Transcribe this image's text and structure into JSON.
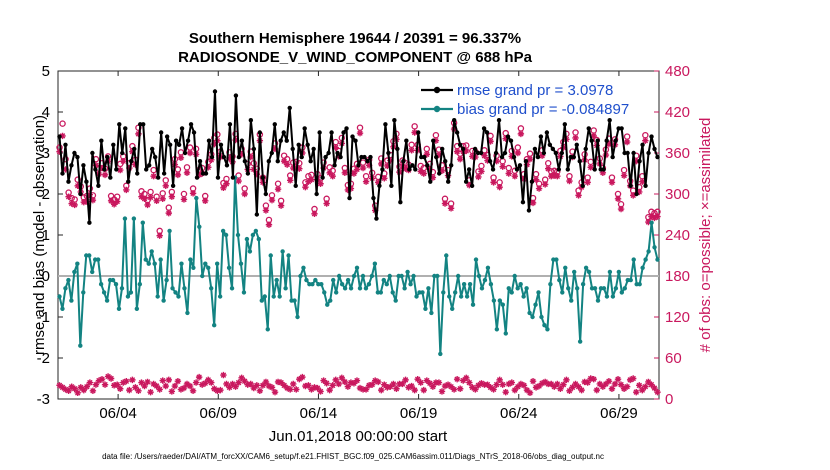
{
  "chart_data": {
    "type": "line",
    "title": "Southern Hemisphere 19644 / 20391 = 96.337%",
    "subtitle": "RADIOSONDE_V_WIND_COMPONENT @ 688 hPa",
    "xlabel": "Jun.01,2018 00:00:00 start",
    "ylabel_left": "rmse and bias (model - observation)",
    "ylabel_right": "# of obs: o=possible; ×=assimilated",
    "footnote": "data file: /Users/raeder/DAI/ATM_forcXX/CAM6_setup/f.e21.FHIST_BGC.f09_025.CAM6assim.011/Diags_NTrS_2018-06/obs_diag_output.nc",
    "x_start_day": 1,
    "x_end_day": 31,
    "xticks": [
      4,
      9,
      14,
      19,
      24,
      29
    ],
    "xtick_labels": [
      "06/04",
      "06/09",
      "06/14",
      "06/19",
      "06/24",
      "06/29"
    ],
    "ylim_left": [
      -3,
      5
    ],
    "yticks_left": [
      "-3",
      "-2",
      "-1",
      "0",
      "1",
      "2",
      "3",
      "4",
      "5"
    ],
    "ylim_right": [
      0,
      480
    ],
    "yticks_right": [
      "0",
      "60",
      "120",
      "180",
      "240",
      "300",
      "360",
      "420",
      "480"
    ],
    "legend": [
      "rmse grand pr = 3.0978",
      "bias grand pr = -0.084897"
    ],
    "colors": {
      "rmse": "#000000",
      "bias": "#138382",
      "obs": "#c9185e",
      "legend_text": "#1f4fcc",
      "zero_line": "#b0b0b0"
    },
    "series": [
      {
        "name": "rmse",
        "axis": "left",
        "values": [
          3.4,
          2.5,
          3.2,
          2.3,
          2.7,
          3.0,
          2.9,
          2.0,
          2.7,
          2.3,
          1.3,
          3.0,
          2.6,
          2.2,
          3.3,
          2.6,
          2.9,
          2.4,
          3.2,
          2.6,
          3.7,
          3.0,
          3.6,
          2.3,
          2.8,
          3.1,
          2.5,
          3.7,
          3.7,
          2.6,
          2.7,
          3.1,
          2.9,
          2.4,
          3.5,
          2.5,
          3.4,
          3.2,
          2.2,
          3.3,
          3.2,
          3.6,
          3.0,
          3.3,
          3.7,
          3.5,
          2.4,
          2.8,
          2.5,
          2.5,
          3.3,
          2.9,
          4.5,
          2.4,
          3.2,
          2.9,
          2.7,
          3.7,
          2.4,
          4.4,
          2.9,
          3.3,
          2.8,
          2.5,
          3.8,
          3.1,
          1.5,
          3.5,
          2.4,
          2.0,
          2.8,
          3.0,
          3.7,
          2.8,
          3.3,
          3.5,
          3.3,
          4.1,
          3.1,
          2.2,
          3.2,
          2.9,
          3.6,
          3.2,
          2.8,
          3.1,
          2.0,
          3.5,
          2.4,
          2.9,
          3.0,
          3.5,
          2.7,
          3.0,
          2.9,
          3.5,
          3.6,
          1.9,
          3.4,
          3.3,
          2.7,
          2.9,
          2.9,
          2.8,
          2.9,
          1.9,
          1.4,
          2.2,
          2.6,
          3.7,
          3.0,
          2.2,
          3.8,
          3.1,
          1.8,
          2.8,
          3.3,
          2.6,
          2.7,
          2.6,
          3.5,
          2.9,
          2.9,
          2.7,
          2.3,
          3.3,
          2.9,
          2.5,
          3.1,
          2.8,
          2.3,
          2.7,
          3.8,
          3.5,
          3.2,
          3.1,
          2.3,
          2.6,
          2.2,
          3.1,
          3.0,
          3.0,
          3.6,
          3.5,
          2.8,
          2.6,
          3.0,
          3.8,
          2.9,
          3.0,
          3.4,
          3.3,
          2.9,
          2.6,
          2.7,
          1.8,
          2.8,
          1.6,
          2.3,
          3.1,
          2.9,
          3.4,
          3.0,
          3.5,
          3.2,
          3.1,
          3.0,
          2.6,
          3.0,
          3.7,
          2.6,
          2.9,
          2.9,
          3.2,
          2.8,
          2.2,
          3.1,
          3.6,
          3.3,
          2.6,
          3.3,
          2.6,
          2.6,
          3.3,
          3.8,
          2.9,
          3.3,
          3.6,
          3.6,
          3.0,
          3.0,
          2.2,
          3.0,
          2.0,
          2.8,
          3.2,
          2.2,
          3.0,
          3.4,
          3.1,
          2.9
        ]
      },
      {
        "name": "bias",
        "axis": "left",
        "values": [
          -0.5,
          -0.8,
          -0.3,
          -0.1,
          -0.6,
          0.1,
          0.3,
          -1.7,
          -0.4,
          0.5,
          0.5,
          0.1,
          0.4,
          0.4,
          -0.2,
          -0.4,
          -0.6,
          -0.1,
          -0.1,
          -0.2,
          -0.8,
          -0.3,
          1.4,
          -0.5,
          -0.4,
          1.4,
          -0.8,
          -0.2,
          1.3,
          0.4,
          0.3,
          0.6,
          0.3,
          -0.5,
          0.4,
          -0.6,
          -0.1,
          1.1,
          -0.3,
          -0.4,
          -0.5,
          0.3,
          -0.3,
          -0.9,
          0.4,
          0.2,
          1.9,
          1.2,
          0.0,
          0.3,
          0.2,
          -0.3,
          -1.2,
          0.3,
          -0.5,
          1.1,
          1.0,
          0.2,
          -0.3,
          2.4,
          1.0,
          0.3,
          -0.4,
          0.9,
          0.6,
          1.0,
          1.1,
          0.9,
          -0.6,
          -0.5,
          -1.3,
          0.5,
          -0.5,
          -0.1,
          -0.5,
          0.6,
          -0.3,
          0.5,
          -0.6,
          -0.6,
          -1.0,
          0.0,
          0.2,
          -0.1,
          -0.2,
          -0.2,
          -0.1,
          -0.2,
          -0.2,
          -0.4,
          -0.7,
          -0.6,
          -0.1,
          -0.4,
          0.0,
          -0.2,
          -0.3,
          -0.1,
          -0.3,
          0.0,
          0.2,
          -0.3,
          0.0,
          -0.3,
          -0.2,
          0.0,
          0.3,
          -0.4,
          -0.4,
          -0.1,
          -0.2,
          0.0,
          -0.4,
          -0.6,
          0.0,
          0.0,
          -0.3,
          0.1,
          -0.2,
          0.0,
          -0.5,
          -0.4,
          -0.4,
          -0.8,
          -0.3,
          -0.9,
          0.0,
          0.0,
          -1.9,
          -0.4,
          0.5,
          -0.5,
          -0.8,
          -0.4,
          0.0,
          -0.5,
          -0.2,
          -0.5,
          -0.2,
          -0.7,
          0.4,
          0.0,
          -0.3,
          -0.1,
          0.2,
          -0.2,
          -0.6,
          -1.3,
          -0.6,
          -0.7,
          -1.4,
          -0.3,
          -0.4,
          0.0,
          -0.3,
          -0.2,
          -0.5,
          -0.3,
          -0.9,
          -1.0,
          -0.7,
          -0.4,
          -1.0,
          -1.2,
          -1.3,
          -0.2,
          0.4,
          0.4,
          -0.1,
          -0.4,
          0.2,
          -0.3,
          -0.6,
          0.1,
          -0.3,
          -1.6,
          -0.2,
          0.2,
          0.1,
          -0.3,
          -0.3,
          -0.6,
          -0.3,
          -0.3,
          -0.5,
          0.1,
          -0.5,
          -0.3,
          0.1,
          -0.4,
          -0.3,
          -0.1,
          -0.1,
          0.4,
          -0.2,
          -0.2,
          0.2,
          0.4,
          0.6,
          1.3,
          0.7,
          0.4
        ]
      },
      {
        "name": "obs possible (o)",
        "axis": "right",
        "values": [
          368,
          403,
          351,
          302,
          294,
          292,
          321,
          311,
          295,
          297,
          308,
          298,
          351,
          337,
          345,
          337,
          355,
          297,
          292,
          296,
          344,
          355,
          312,
          345,
          370,
          350,
          397,
          304,
          300,
          291,
          303,
          335,
          296,
          246,
          301,
          320,
          280,
          303,
          351,
          336,
          361,
          300,
          339,
          368,
          308,
          366,
          335,
          338,
          297,
          347,
          358,
          382,
          387,
          362,
          316,
          322,
          361,
          355,
          388,
          327,
          366,
          308,
          344,
          362,
          345,
          337,
          387,
          324,
          283,
          262,
          298,
          374,
          315,
          290,
          356,
          351,
          327,
          346,
          347,
          345,
          368,
          317,
          326,
          328,
          278,
          329,
          323,
          346,
          293,
          339,
          334,
          376,
          363,
          382,
          338,
          313,
          315,
          337,
          344,
          397,
          346,
          326,
          350,
          331,
          283,
          325,
          352,
          330,
          349,
          357,
          377,
          388,
          340,
          349,
          345,
          343,
          372,
          399,
          372,
          341,
          338,
          366,
          344,
          332,
          386,
          365,
          342,
          293,
          335,
          286,
          404,
          370,
          359,
          370,
          371,
          320,
          363,
          362,
          333,
          341,
          364,
          357,
          385,
          324,
          356,
          317,
          348,
          389,
          338,
          363,
          334,
          368,
          396,
          329,
          351,
          359,
          294,
          329,
          315,
          364,
          321,
          345,
          333,
          334,
          333,
          363,
          376,
          388,
          326,
          362,
          390,
          305,
          317,
          358,
          324,
          347,
          393,
          379,
          352,
          338,
          365,
          381,
          324,
          380,
          300,
          285,
          335,
          384,
          319,
          305,
          356,
          310,
          326,
          386,
          266,
          274,
          272,
          274
        ]
      },
      {
        "name": "obs assimilated (x)",
        "axis": "right",
        "values": [
          362,
          385,
          336,
          296,
          286,
          284,
          312,
          303,
          288,
          289,
          299,
          291,
          342,
          329,
          338,
          328,
          348,
          290,
          285,
          289,
          335,
          348,
          306,
          338,
          362,
          343,
          388,
          296,
          293,
          284,
          295,
          326,
          290,
          239,
          293,
          312,
          272,
          296,
          343,
          328,
          353,
          292,
          331,
          360,
          301,
          358,
          328,
          330,
          290,
          339,
          350,
          373,
          378,
          354,
          309,
          315,
          352,
          347,
          379,
          319,
          358,
          300,
          336,
          354,
          336,
          329,
          378,
          317,
          276,
          255,
          291,
          366,
          307,
          283,
          348,
          343,
          320,
          338,
          339,
          337,
          360,
          310,
          318,
          321,
          271,
          321,
          315,
          338,
          286,
          331,
          326,
          368,
          355,
          374,
          331,
          306,
          308,
          330,
          336,
          389,
          338,
          318,
          342,
          323,
          276,
          317,
          344,
          323,
          341,
          349,
          369,
          380,
          332,
          341,
          337,
          335,
          364,
          390,
          364,
          333,
          330,
          358,
          336,
          324,
          378,
          357,
          334,
          286,
          327,
          279,
          395,
          362,
          351,
          362,
          363,
          313,
          355,
          354,
          325,
          333,
          356,
          349,
          377,
          317,
          348,
          310,
          340,
          381,
          330,
          355,
          326,
          360,
          388,
          322,
          343,
          351,
          287,
          321,
          308,
          356,
          314,
          337,
          326,
          327,
          326,
          355,
          368,
          380,
          319,
          354,
          382,
          298,
          310,
          350,
          317,
          339,
          385,
          371,
          344,
          331,
          357,
          373,
          317,
          372,
          293,
          278,
          327,
          376,
          312,
          298,
          348,
          303,
          318,
          378,
          259,
          267,
          265,
          267
        ]
      },
      {
        "name": "obs possible low (o)",
        "axis": "right",
        "values": [
          20,
          17,
          14,
          12,
          18,
          15,
          9,
          17,
          13,
          18,
          24,
          12,
          21,
          27,
          29,
          21,
          33,
          30,
          20,
          21,
          15,
          24,
          26,
          13,
          28,
          17,
          12,
          24,
          19,
          25,
          10,
          22,
          19,
          14,
          27,
          19,
          28,
          11,
          19,
          26,
          14,
          16,
          22,
          19,
          12,
          24,
          32,
          21,
          23,
          28,
          24,
          15,
          12,
          13,
          35,
          22,
          17,
          22,
          18,
          24,
          31,
          26,
          21,
          22,
          16,
          20,
          12,
          20,
          25,
          19,
          17,
          10,
          25,
          24,
          20,
          16,
          14,
          22,
          14,
          29,
          32,
          19,
          20,
          14,
          17,
          16,
          11,
          27,
          23,
          13,
          20,
          28,
          22,
          31,
          25,
          18,
          24,
          23,
          27,
          16,
          14,
          14,
          20,
          21,
          27,
          25,
          13,
          21,
          17,
          18,
          22,
          15,
          22,
          22,
          28,
          17,
          19,
          13,
          29,
          24,
          13,
          27,
          23,
          18,
          24,
          24,
          11,
          19,
          21,
          18,
          14,
          29,
          15,
          27,
          31,
          24,
          17,
          14,
          20,
          23,
          21,
          21,
          17,
          14,
          21,
          28,
          21,
          10,
          22,
          24,
          13,
          18,
          22,
          20,
          13,
          9,
          26,
          17,
          19,
          23,
          25,
          22,
          22,
          18,
          22,
          15,
          21,
          28,
          12,
          17,
          22,
          18,
          13,
          25,
          24,
          30,
          29,
          13,
          22,
          18,
          22,
          26,
          15,
          22,
          29,
          21,
          15,
          18,
          28,
          30,
          10,
          20,
          13,
          18,
          25,
          21,
          16,
          10
        ]
      }
    ]
  }
}
